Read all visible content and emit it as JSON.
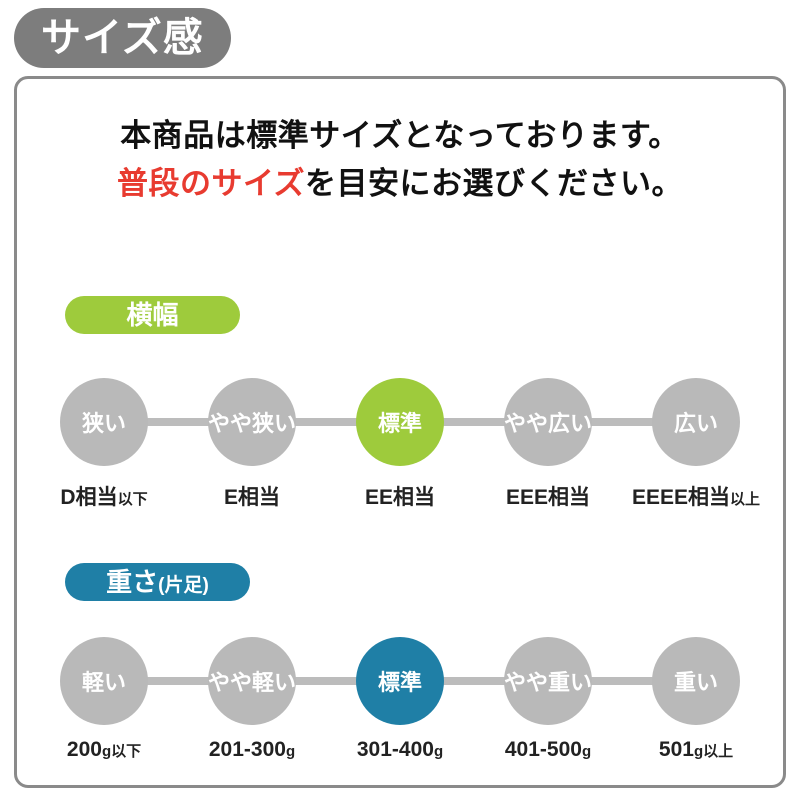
{
  "page": {
    "title_badge": "サイズ感"
  },
  "intro": {
    "line1": "本商品は標準サイズとなっております。",
    "line2_highlight": "普段のサイズ",
    "line2_rest": "を目安にお選びください。"
  },
  "colors": {
    "badge_gray": "#7d7d7d",
    "card_border": "#8a8a8a",
    "inactive_gray": "#b9b9b9",
    "accent_green": "#9ecb3c",
    "accent_blue": "#1f7fa6",
    "highlight_red": "#e83b30"
  },
  "sections": [
    {
      "badge": {
        "main": "横幅",
        "sub": ""
      },
      "accent": "#9ecb3c",
      "active_index": 2,
      "steps": [
        {
          "label": "狭い",
          "active": false
        },
        {
          "label": "やや狭い",
          "active": false
        },
        {
          "label": "標準",
          "active": true
        },
        {
          "label": "やや広い",
          "active": false
        },
        {
          "label": "広い",
          "active": false
        }
      ],
      "values": [
        {
          "main": "D相当",
          "suffix": "以下"
        },
        {
          "main": "E相当",
          "suffix": ""
        },
        {
          "main": "EE相当",
          "suffix": ""
        },
        {
          "main": "EEE相当",
          "suffix": ""
        },
        {
          "main": "EEEE相当",
          "suffix": "以上"
        }
      ]
    },
    {
      "badge": {
        "main": "重さ",
        "sub": "(片足)"
      },
      "accent": "#1f7fa6",
      "active_index": 2,
      "steps": [
        {
          "label": "軽い",
          "active": false
        },
        {
          "label": "やや軽い",
          "active": false
        },
        {
          "label": "標準",
          "active": true
        },
        {
          "label": "やや重い",
          "active": false
        },
        {
          "label": "重い",
          "active": false
        }
      ],
      "values": [
        {
          "main": "200",
          "suffix": "g以下"
        },
        {
          "main": "201-300",
          "suffix": "g"
        },
        {
          "main": "301-400",
          "suffix": "g"
        },
        {
          "main": "401-500",
          "suffix": "g"
        },
        {
          "main": "501",
          "suffix": "g以上"
        }
      ]
    }
  ]
}
